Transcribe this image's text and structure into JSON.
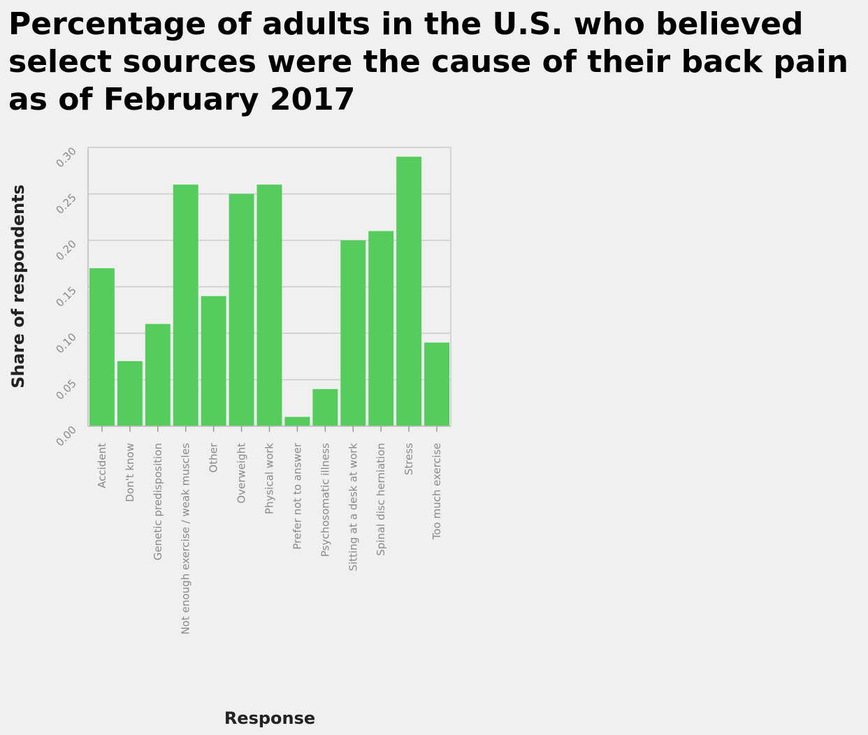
{
  "chart_data": {
    "type": "bar",
    "title": "Percentage of adults in the U.S. who believed select sources were the cause of their back pain as of February 2017",
    "xlabel": "Response",
    "ylabel": "Share of respondents",
    "ylim": [
      0,
      0.3
    ],
    "yticks": [
      "0.00",
      "0.05",
      "0.10",
      "0.15",
      "0.20",
      "0.25",
      "0.30"
    ],
    "grid": true,
    "bar_color": "#57cc5e",
    "categories": [
      "Accident",
      "Don't know",
      "Genetic predisposition",
      "Not enough exercise / weak muscles",
      "Other",
      "Overweight",
      "Physical work",
      "Prefer not to answer",
      "Psychosomatic illness",
      "Sitting at a desk at work",
      "Spinal disc herniation",
      "Stress",
      "Too much exercise"
    ],
    "values": [
      0.17,
      0.07,
      0.11,
      0.26,
      0.14,
      0.25,
      0.26,
      0.01,
      0.04,
      0.2,
      0.21,
      0.29,
      0.09
    ]
  }
}
